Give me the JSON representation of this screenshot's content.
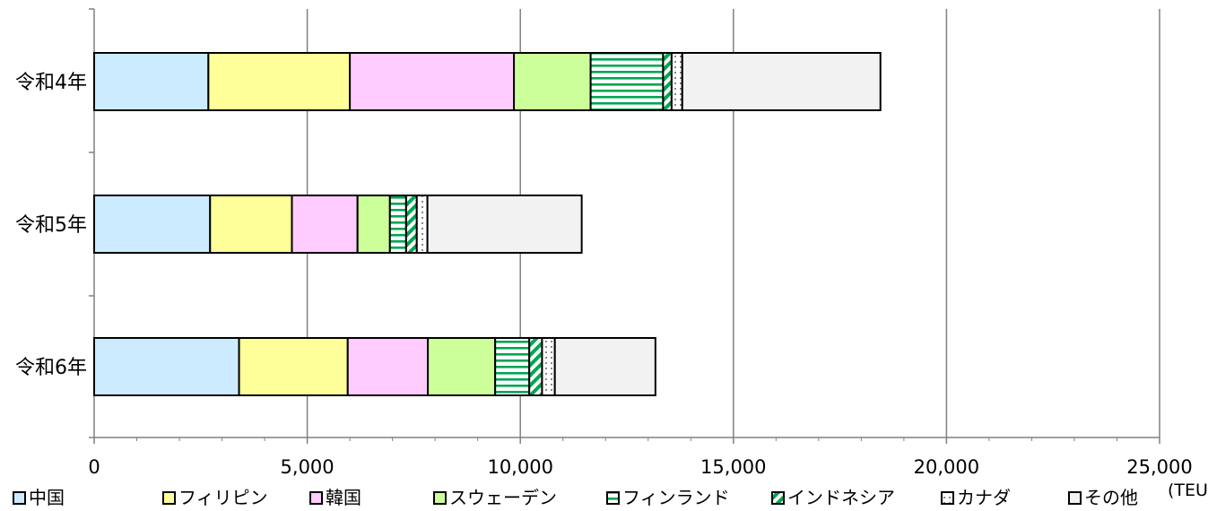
{
  "chart_data": {
    "type": "bar",
    "orientation": "horizontal",
    "stacked": true,
    "categories": [
      "令和4年",
      "令和5年",
      "令和6年"
    ],
    "series": [
      {
        "name": "中国",
        "values": [
          2680,
          2720,
          3400
        ],
        "color": "#CCEBFF",
        "pattern": "solid"
      },
      {
        "name": "フィリピン",
        "values": [
          3320,
          1920,
          2550
        ],
        "color": "#FFFF99",
        "pattern": "solid"
      },
      {
        "name": "韓国",
        "values": [
          3850,
          1540,
          1880
        ],
        "color": "#FFCCFF",
        "pattern": "solid"
      },
      {
        "name": "スウェーデン",
        "values": [
          1800,
          760,
          1580
        ],
        "color": "#CCFF99",
        "pattern": "solid"
      },
      {
        "name": "フィンランド",
        "values": [
          1700,
          380,
          800
        ],
        "color": "#00A651",
        "pattern": "hlines"
      },
      {
        "name": "インドネシア",
        "values": [
          200,
          250,
          300
        ],
        "color": "#00A651",
        "pattern": "diag"
      },
      {
        "name": "カナダ",
        "values": [
          250,
          250,
          300
        ],
        "color": "#333333",
        "pattern": "dots"
      },
      {
        "name": "その他",
        "values": [
          4650,
          3620,
          2360
        ],
        "color": "#F2F2F2",
        "pattern": "solid"
      }
    ],
    "xlim": [
      0,
      25000
    ],
    "xticks": [
      "0",
      "5,000",
      "10,000",
      "15,000",
      "20,000",
      "25,000"
    ],
    "unit_label": "(TEU)",
    "grid": "vertical",
    "legend_position": "bottom"
  }
}
